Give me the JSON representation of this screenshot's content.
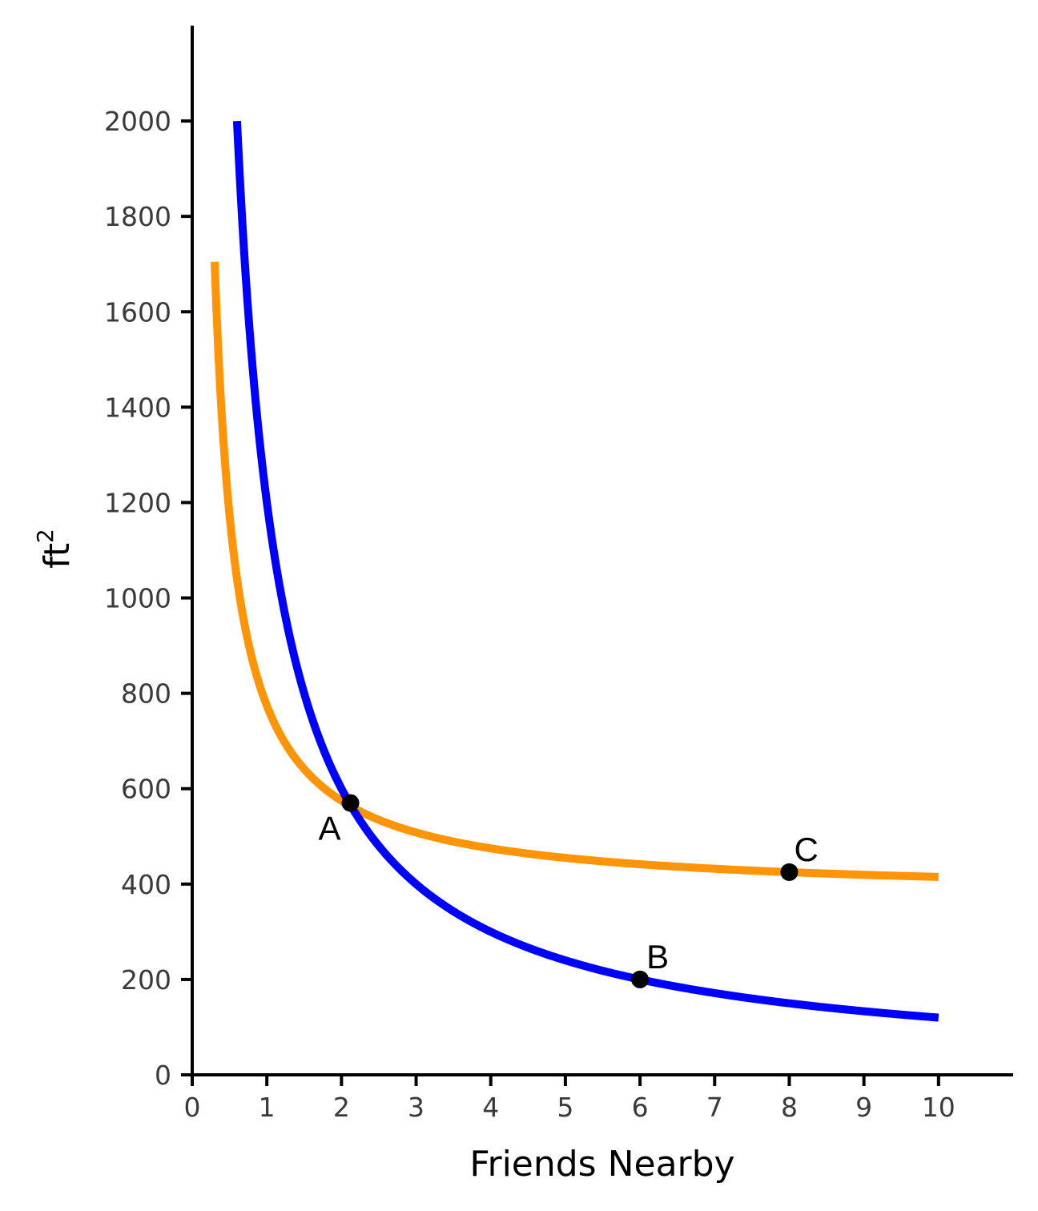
{
  "chart_data": {
    "type": "line",
    "xlabel": "Friends Nearby",
    "ylabel": "ft",
    "ylabel_superscript": "2",
    "xlim": [
      0,
      11
    ],
    "ylim": [
      0,
      2200
    ],
    "x_ticks": [
      0,
      1,
      2,
      3,
      4,
      5,
      6,
      7,
      8,
      9,
      10
    ],
    "y_ticks": [
      0,
      200,
      400,
      600,
      800,
      1000,
      1200,
      1400,
      1600,
      1800,
      2000
    ],
    "grid": false,
    "series": [
      {
        "color": "#ff9407",
        "points": [
          [
            0.3,
            1705
          ],
          [
            0.35,
            1486
          ],
          [
            0.4,
            1323
          ],
          [
            0.5,
            1094
          ],
          [
            0.6,
            942
          ],
          [
            0.8,
            752
          ],
          [
            1.0,
            638
          ],
          [
            1.5,
            486
          ],
          [
            2.0,
            410
          ],
          [
            2.12,
            572
          ],
          [
            2.5,
            527
          ],
          [
            3.0,
            498
          ],
          [
            4.0,
            471
          ],
          [
            5.0,
            455
          ],
          [
            6.0,
            443
          ],
          [
            7.0,
            434
          ],
          [
            8.0,
            425
          ],
          [
            9.0,
            419
          ],
          [
            10.0,
            415
          ]
        ]
      },
      {
        "color": "#0000ff",
        "points": [
          [
            0.6,
            2000
          ],
          [
            0.7,
            1714
          ],
          [
            0.8,
            1500
          ],
          [
            1.0,
            1200
          ],
          [
            1.2,
            1000
          ],
          [
            1.5,
            800
          ],
          [
            2.0,
            600
          ],
          [
            2.5,
            480
          ],
          [
            3.0,
            400
          ],
          [
            4.0,
            300
          ],
          [
            5.0,
            240
          ],
          [
            6.0,
            200
          ],
          [
            7.0,
            171
          ],
          [
            8.0,
            150
          ],
          [
            9.0,
            133
          ],
          [
            10.0,
            120
          ]
        ]
      }
    ],
    "points": [
      {
        "label": "A",
        "x": 2.12,
        "y": 570
      },
      {
        "label": "B",
        "x": 6.0,
        "y": 200
      },
      {
        "label": "C",
        "x": 8.0,
        "y": 425
      }
    ]
  }
}
